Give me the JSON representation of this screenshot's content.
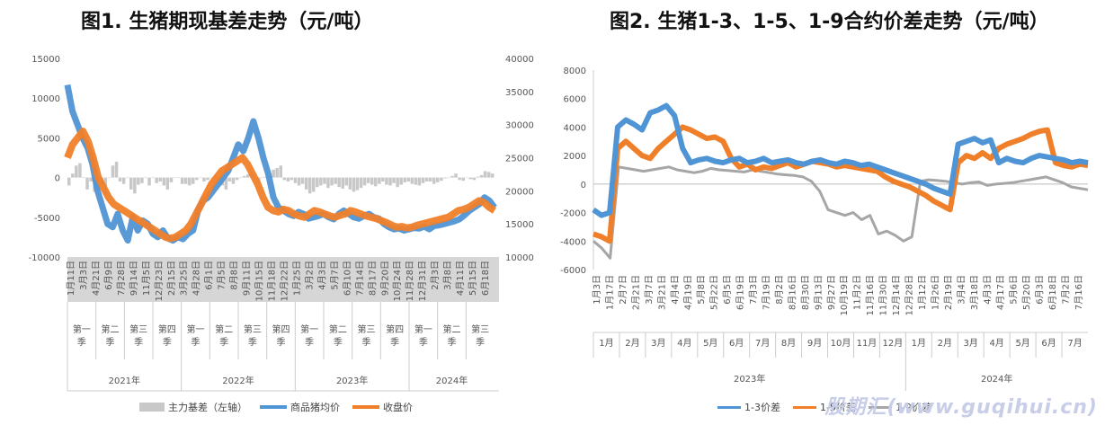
{
  "colors": {
    "basis": "#c8c8c8",
    "avg": "#4f94d4",
    "close": "#f07f2a",
    "spread9": "#a6a6a6"
  },
  "chart_data": [
    {
      "type": "bar",
      "title": "图1. 生猪期现基差走势（元/吨）",
      "left_axis": {
        "ylim": [
          -10000,
          15000
        ],
        "ticks": [
          "15000",
          "10000",
          "5000",
          "0",
          "-5000",
          "-10000"
        ]
      },
      "right_axis": {
        "ylim": [
          10000,
          40000
        ],
        "ticks": [
          "40000",
          "35000",
          "30000",
          "25000",
          "20000",
          "15000",
          "10000"
        ]
      },
      "date_labels": [
        "1月11日",
        "3月3日",
        "4月21日",
        "6月9日",
        "7月28日",
        "9月14日",
        "11月5日",
        "12月23日",
        "2月15日",
        "3月25日",
        "4月28日",
        "6月1日",
        "7月5日",
        "8月8日",
        "9月11日",
        "10月15日",
        "11月18日",
        "12月22日",
        "1月25日",
        "3月2日",
        "4月3日",
        "5月7日",
        "6月10日",
        "7月14日",
        "8月17日",
        "9月20日",
        "10月24日",
        "11月28日",
        "12月31日",
        "2月3日",
        "3月8日",
        "4月11日",
        "5月15日",
        "6月18日"
      ],
      "quarters": [
        {
          "label": "第一季",
          "year": 0
        },
        {
          "label": "第二季",
          "year": 0
        },
        {
          "label": "第三季",
          "year": 0
        },
        {
          "label": "第四季",
          "year": 0
        },
        {
          "label": "第一季",
          "year": 1
        },
        {
          "label": "第二季",
          "year": 1
        },
        {
          "label": "第三季",
          "year": 1
        },
        {
          "label": "第四季",
          "year": 1
        },
        {
          "label": "第一季",
          "year": 2
        },
        {
          "label": "第二季",
          "year": 2
        },
        {
          "label": "第三季",
          "year": 2
        },
        {
          "label": "第四季",
          "year": 2
        },
        {
          "label": "第一季",
          "year": 3
        },
        {
          "label": "第二季",
          "year": 3
        },
        {
          "label": "第三季",
          "year": 3
        }
      ],
      "years": [
        "2021年",
        "2022年",
        "2023年",
        "2024年"
      ],
      "series": [
        {
          "name": "主力基差（左轴）",
          "axis": "left",
          "values": [
            -1000,
            500,
            1500,
            1800,
            0,
            -1500,
            -500,
            -1800,
            -1500,
            -1000,
            -2200,
            0,
            1500,
            2000,
            -500,
            -800,
            0,
            -1500,
            -2000,
            -900,
            -700,
            0,
            -1000,
            0,
            -700,
            -500,
            -1000,
            -1500,
            -600,
            0,
            0,
            -800,
            -800,
            -1000,
            -800,
            -300,
            0,
            -500,
            -300,
            0,
            0,
            -400,
            -1000,
            -1500,
            -500,
            -800,
            -300,
            0,
            200,
            400,
            700,
            -400,
            -700,
            0,
            100,
            200,
            1000,
            1200,
            1500,
            -300,
            -500,
            -300,
            -700,
            -1000,
            -800,
            -1500,
            -2000,
            -1800,
            -1200,
            -1000,
            -800,
            -1300,
            -1000,
            -800,
            -1200,
            -1400,
            -1000,
            -1500,
            -1800,
            -1600,
            -1300,
            -1000,
            -700,
            -900,
            -1100,
            -800,
            -500,
            -900,
            -1000,
            -700,
            -1200,
            -900,
            -600,
            -500,
            -800,
            -900,
            -1000,
            -700,
            -500,
            -500,
            -800,
            -600,
            -400,
            -100,
            0,
            200,
            500,
            -300,
            -400,
            0,
            -200,
            -300,
            100,
            300,
            800,
            700,
            500
          ]
        },
        {
          "name": "商品猪均价",
          "axis": "right",
          "values": [
            36000,
            32000,
            30000,
            28000,
            26500,
            24000,
            20000,
            17500,
            15000,
            14500,
            16500,
            14000,
            12500,
            16000,
            14000,
            15500,
            15000,
            13500,
            13000,
            14000,
            12800,
            12500,
            13000,
            12700,
            13500,
            14000,
            17000,
            18500,
            19000,
            20000,
            21000,
            22000,
            23000,
            25000,
            27000,
            26000,
            28000,
            30500,
            28000,
            25000,
            22500,
            19000,
            17500,
            17000,
            16500,
            16200,
            16800,
            16500,
            15800,
            16000,
            16200,
            16500,
            16000,
            15700,
            16500,
            17000,
            16500,
            16000,
            15800,
            16200,
            16500,
            16000,
            15800,
            15000,
            14500,
            14200,
            14300,
            14000,
            14200,
            14400,
            14300,
            14600,
            14200,
            14700,
            14800,
            15000,
            15200,
            15400,
            15700,
            16300,
            17000,
            17500,
            18000,
            19000,
            18500,
            17500
          ]
        },
        {
          "name": "收盘价",
          "axis": "right",
          "values": [
            25000,
            27000,
            28000,
            29000,
            27500,
            25000,
            22000,
            20500,
            19000,
            18000,
            17500,
            17000,
            16500,
            16000,
            15500,
            15000,
            14500,
            14000,
            13500,
            13000,
            12800,
            13000,
            13500,
            14000,
            15000,
            16500,
            18000,
            19500,
            21000,
            22000,
            23000,
            23500,
            24000,
            24500,
            25000,
            24000,
            22500,
            21000,
            19000,
            17500,
            17000,
            16800,
            17200,
            17000,
            16500,
            16200,
            16000,
            16500,
            17000,
            16800,
            16500,
            16200,
            16000,
            16300,
            16500,
            17000,
            16800,
            16500,
            16200,
            16000,
            15800,
            15500,
            15200,
            14800,
            14500,
            14600,
            14400,
            14500,
            14800,
            15000,
            15200,
            15400,
            15600,
            15800,
            16000,
            16500,
            17000,
            17200,
            17500,
            18000,
            18500,
            18200,
            17500,
            17000
          ]
        }
      ],
      "legend": [
        {
          "label": "主力基差（左轴）",
          "kind": "bar"
        },
        {
          "label": "商品猪均价",
          "kind": "line",
          "color": "#4f94d4"
        },
        {
          "label": "收盘价",
          "kind": "line",
          "color": "#f07f2a"
        }
      ]
    },
    {
      "type": "line",
      "title": "图2. 生猪1-3、1-5、1-9合约价差走势（元/吨）",
      "ylim": [
        -6000,
        8000
      ],
      "y_ticks": [
        "8000",
        "6000",
        "4000",
        "2000",
        "0",
        "-2000",
        "-4000",
        "-6000"
      ],
      "date_labels": [
        "1月3日",
        "1月17日",
        "2月7日",
        "2月21日",
        "3月7日",
        "3月21日",
        "4月4日",
        "4月19日",
        "5月8日",
        "5月22日",
        "6月5日",
        "6月19日",
        "7月3日",
        "7月19日",
        "8月2日",
        "8月16日",
        "8月30日",
        "9月13日",
        "9月27日",
        "10月19日",
        "11月2日",
        "11月16日",
        "11月30日",
        "12月14日",
        "12月28日",
        "1月12日",
        "1月26日",
        "2月19日",
        "3月4日",
        "3月18日",
        "4月3日",
        "4月17日",
        "5月6日",
        "5月20日",
        "6月3日",
        "6月18日",
        "7月2日",
        "7月16日"
      ],
      "months_2023": [
        "1月",
        "2月",
        "3月",
        "4月",
        "5月",
        "6月",
        "7月",
        "8月",
        "9月",
        "10月",
        "11月",
        "12月"
      ],
      "months_2024": [
        "1月",
        "2月",
        "3月",
        "4月",
        "5月",
        "6月",
        "7月"
      ],
      "years": [
        "2023年",
        "2024年"
      ],
      "series": [
        {
          "name": "1-3价差",
          "values": [
            -1800,
            -2200,
            -2000,
            4000,
            4500,
            4200,
            3800,
            5000,
            5200,
            5500,
            4800,
            2500,
            1500,
            1700,
            1800,
            1600,
            1500,
            1700,
            1800,
            1500,
            1600,
            1800,
            1500,
            1600,
            1700,
            1500,
            1400,
            1600,
            1700,
            1500,
            1400,
            1600,
            1500,
            1300,
            1400,
            1200,
            1000,
            800,
            600,
            400,
            200,
            0,
            -300,
            -500,
            -700,
            2800,
            3000,
            3200,
            2900,
            3100,
            1500,
            1800,
            1600,
            1500,
            1800,
            2000,
            1900,
            1800,
            1700,
            1500,
            1600,
            1500
          ]
        },
        {
          "name": "1-5价差",
          "values": [
            -3500,
            -3700,
            -4000,
            2500,
            3000,
            2500,
            2000,
            1800,
            2500,
            3000,
            3500,
            4000,
            3800,
            3500,
            3200,
            3300,
            3000,
            1800,
            1200,
            1400,
            1000,
            1200,
            1100,
            1300,
            1500,
            1200,
            1400,
            1600,
            1500,
            1400,
            1200,
            1300,
            1200,
            1100,
            1000,
            900,
            500,
            200,
            0,
            -200,
            -500,
            -800,
            -1200,
            -1500,
            -1800,
            1500,
            2000,
            1800,
            2200,
            1800,
            2500,
            2800,
            3000,
            3200,
            3500,
            3700,
            3800,
            1500,
            1300,
            1200,
            1400,
            1300
          ]
        },
        {
          "name": "1-9价差",
          "values": [
            -4000,
            -4500,
            -5200,
            1200,
            1100,
            1000,
            900,
            1000,
            1100,
            1200,
            1000,
            900,
            800,
            900,
            1100,
            1000,
            950,
            900,
            850,
            1000,
            900,
            800,
            700,
            650,
            600,
            500,
            200,
            -500,
            -1800,
            -2000,
            -2200,
            -2000,
            -2500,
            -2200,
            -3500,
            -3300,
            -3600,
            -4000,
            -3700,
            200,
            300,
            250,
            200,
            100,
            0,
            100,
            150,
            -100,
            0,
            50,
            100,
            200,
            300,
            400,
            500,
            300,
            100,
            -200,
            -300,
            -400
          ]
        }
      ],
      "legend": [
        {
          "label": "1-3价差",
          "color": "#4f94d4"
        },
        {
          "label": "1-5价差",
          "color": "#f07f2a"
        },
        {
          "label": "1-9价差",
          "color": "#a6a6a6"
        }
      ]
    }
  ],
  "watermark": "股期汇(www.guqihui.cn)"
}
